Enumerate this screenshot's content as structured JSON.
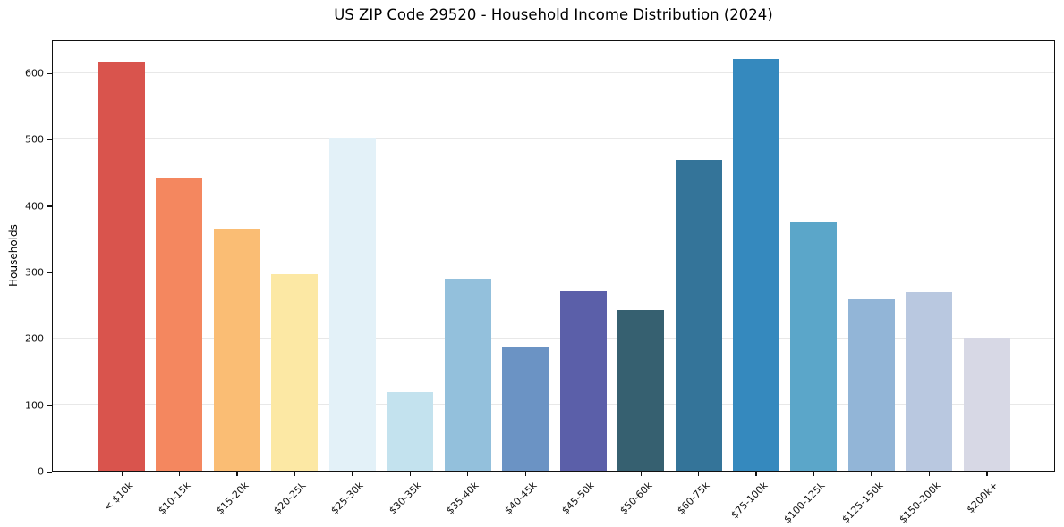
{
  "chart_data": {
    "type": "bar",
    "title": "US ZIP Code 29520 - Household Income Distribution (2024)",
    "xlabel": "",
    "ylabel": "Households",
    "ylim": [
      0,
      650
    ],
    "yticks": [
      0,
      100,
      200,
      300,
      400,
      500,
      600
    ],
    "grid": "horizontal",
    "legend": "none",
    "categories": [
      "< $10k",
      "$10-15k",
      "$15-20k",
      "$20-25k",
      "$25-30k",
      "$30-35k",
      "$35-40k",
      "$40-45k",
      "$45-50k",
      "$50-60k",
      "$60-75k",
      "$75-100k",
      "$100-125k",
      "$125-150k",
      "$150-200k",
      "$200k+"
    ],
    "values": [
      617,
      442,
      365,
      296,
      500,
      119,
      289,
      186,
      270,
      242,
      469,
      620,
      375,
      258,
      269,
      200
    ],
    "bar_colors": [
      "#d9544d",
      "#f4875f",
      "#fabd74",
      "#fce8a4",
      "#e3f1f8",
      "#c3e2ee",
      "#93c0dc",
      "#6b93c4",
      "#5b5fa9",
      "#366070",
      "#347499",
      "#3589be",
      "#5ba6c9",
      "#92b5d7",
      "#b9c8e0",
      "#d7d8e5"
    ]
  },
  "colors": {
    "background": "#ffffff",
    "spine": "#111111",
    "gridline": "#e8e8e8",
    "text": "#1a1a1a"
  }
}
